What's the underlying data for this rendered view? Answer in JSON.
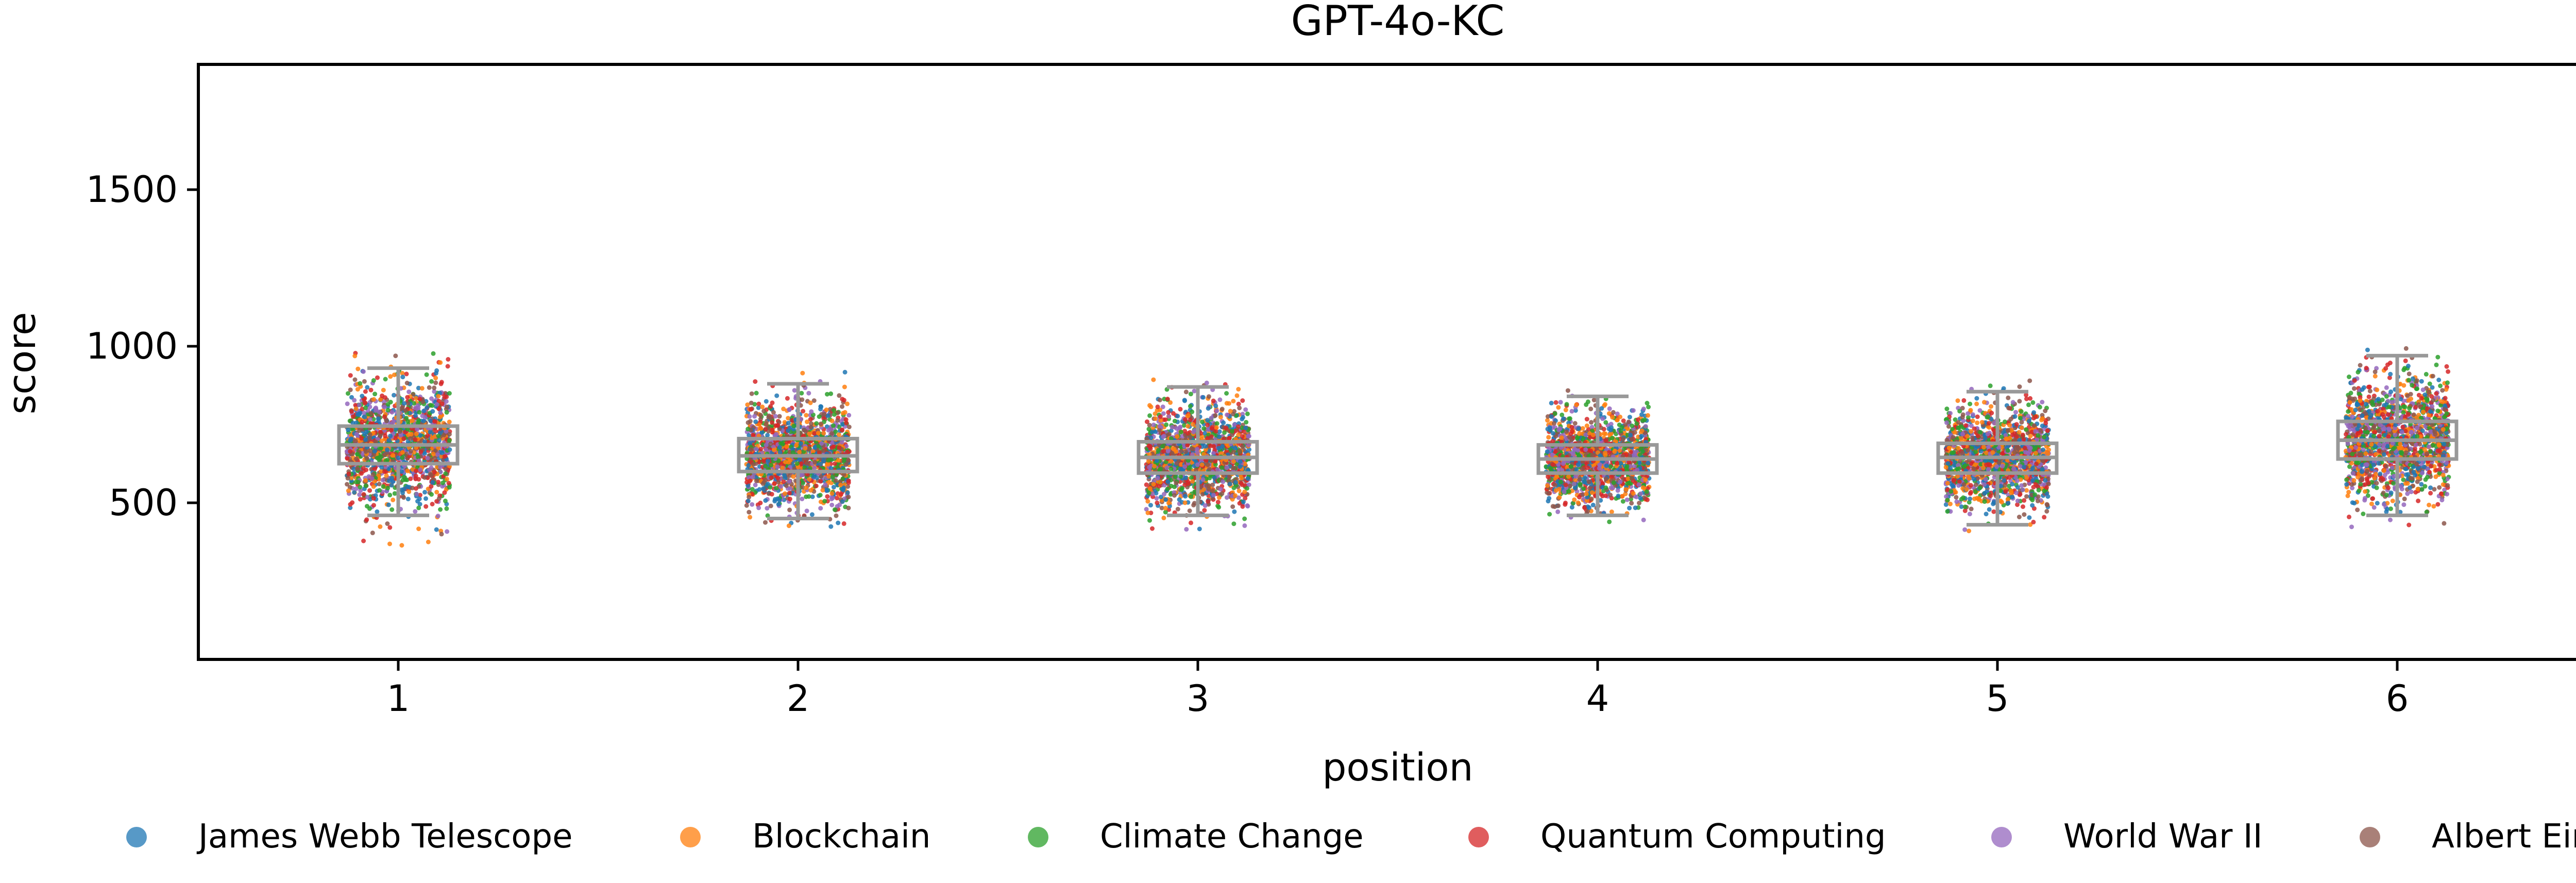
{
  "chart_data": {
    "type": "scatter",
    "subtype": "strip-with-boxplot",
    "title": "GPT-4o-KC",
    "xlabel": "position",
    "ylabel": "score",
    "x_categories": [
      "1",
      "2",
      "3",
      "4",
      "5",
      "6"
    ],
    "ylim": [
      0,
      1900
    ],
    "yticks": [
      500,
      1000,
      1500
    ],
    "ytick_labels": [
      "500",
      "1000",
      "1500"
    ],
    "grid": false,
    "legend_position": "bottom",
    "series": [
      {
        "name": "James Webb Telescope",
        "color": "#1f77b4"
      },
      {
        "name": "Blockchain",
        "color": "#ff7f0e"
      },
      {
        "name": "Climate Change",
        "color": "#2ca02c"
      },
      {
        "name": "Quantum Computing",
        "color": "#d62728"
      },
      {
        "name": "World War II",
        "color": "#9467bd"
      },
      {
        "name": "Albert Einstein",
        "color": "#8c564b"
      }
    ],
    "box_color": "#999999",
    "boxes": [
      {
        "position": "1",
        "q1": 625,
        "median": 685,
        "q3": 745,
        "whisker_low": 460,
        "whisker_high": 930,
        "min": 350,
        "max": 980,
        "spread_sd": 95
      },
      {
        "position": "2",
        "q1": 600,
        "median": 650,
        "q3": 705,
        "whisker_low": 450,
        "whisker_high": 880,
        "min": 420,
        "max": 920,
        "spread_sd": 80
      },
      {
        "position": "3",
        "q1": 595,
        "median": 645,
        "q3": 695,
        "whisker_low": 460,
        "whisker_high": 870,
        "min": 410,
        "max": 900,
        "spread_sd": 78
      },
      {
        "position": "4",
        "q1": 595,
        "median": 640,
        "q3": 685,
        "whisker_low": 460,
        "whisker_high": 840,
        "min": 430,
        "max": 930,
        "spread_sd": 72
      },
      {
        "position": "5",
        "q1": 595,
        "median": 645,
        "q3": 690,
        "whisker_low": 430,
        "whisker_high": 855,
        "min": 400,
        "max": 890,
        "spread_sd": 76
      },
      {
        "position": "6",
        "q1": 640,
        "median": 700,
        "q3": 760,
        "whisker_low": 460,
        "whisker_high": 970,
        "min": 420,
        "max": 1010,
        "spread_sd": 95
      }
    ]
  }
}
